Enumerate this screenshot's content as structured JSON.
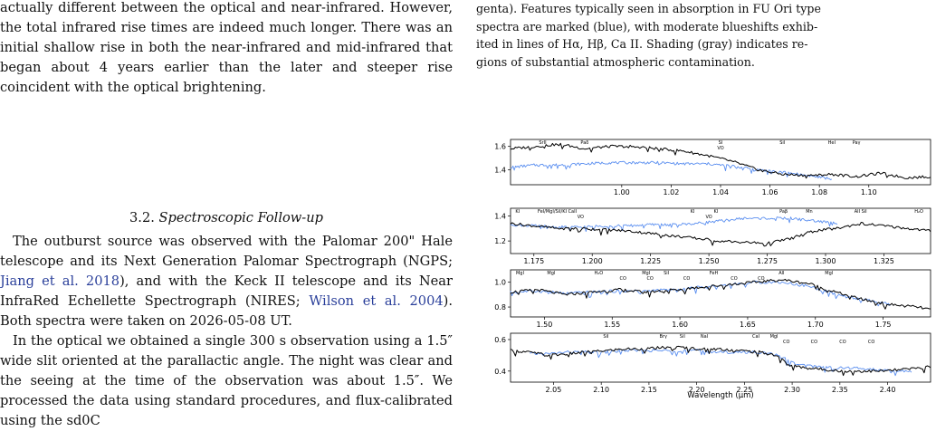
{
  "left_column": {
    "para1": "actually different between the optical and near-infrared. However, the total infrared rise times are indeed much longer.  There was an initial shallow rise in both the near-infrared and mid-infrared that began about 4 years earlier than the later and steeper rise coincident with the optical brightening.",
    "section_number": "3.2.",
    "section_title": "Spectroscopic Follow-up",
    "para2_a": "The outburst source was observed with the Palomar 200\" Hale telescope and its Next Generation Palomar Spectrograph (NGPS; ",
    "para2_cite1": "Jiang et al. 2018",
    "para2_b": "), and with the Keck II telescope and its Near InfraRed Echellette Spectrograph (NIRES; ",
    "para2_cite2": "Wilson et al. 2004",
    "para2_c": ").  Both spectra were taken on 2026-05-08 UT.",
    "para3": "In the optical we obtained a single 300 s observation using a 1.5″ wide slit oriented at the parallactic angle. The night was clear and the seeing at the time of the observation was about 1.5″. We processed the data using standard procedures, and flux-calibrated using the sd0C"
  },
  "right_column": {
    "caption_line1": "genta). Features typically seen in absorption in FU Ori type",
    "caption_line2": "spectra are marked (blue), with moderate blueshifts exhib-",
    "caption_line3": "ited in lines of Hα, Hβ, Ca II. Shading (gray) indicates re-",
    "caption_line4": "gions of substantial atmospheric contamination."
  },
  "chart_data": {
    "type": "line",
    "xlabel": "Wavelength (μm)",
    "colors": {
      "target": "#000000",
      "template": "#5b8ff0"
    },
    "panels": [
      {
        "xlim": [
          0.955,
          1.125
        ],
        "ylim": [
          1.27,
          1.66
        ],
        "xticks": [
          "1.00",
          "1.02",
          "1.04",
          "1.06",
          "1.08",
          "1.10"
        ],
        "xtick_values": [
          1.0,
          1.02,
          1.04,
          1.06,
          1.08,
          1.1
        ],
        "yticks": [
          "1.6",
          "1.4"
        ],
        "ytick_values": [
          1.6,
          1.4
        ],
        "line_labels": [
          {
            "x": 0.968,
            "text": "SrII"
          },
          {
            "x": 0.985,
            "text": "Paδ"
          },
          {
            "x": 1.04,
            "text": "SI"
          },
          {
            "x": 1.04,
            "text": "VO",
            "row": 2
          },
          {
            "x": 1.065,
            "text": "SiI"
          },
          {
            "x": 1.085,
            "text": "HeI"
          },
          {
            "x": 1.095,
            "text": "Paγ"
          }
        ],
        "target": [
          [
            0.955,
            1.58
          ],
          [
            0.965,
            1.6
          ],
          [
            0.975,
            1.62
          ],
          [
            0.985,
            1.58
          ],
          [
            0.995,
            1.6
          ],
          [
            1.005,
            1.6
          ],
          [
            1.015,
            1.58
          ],
          [
            1.025,
            1.56
          ],
          [
            1.035,
            1.52
          ],
          [
            1.045,
            1.47
          ],
          [
            1.055,
            1.4
          ],
          [
            1.065,
            1.36
          ],
          [
            1.075,
            1.35
          ],
          [
            1.085,
            1.36
          ],
          [
            1.095,
            1.34
          ],
          [
            1.105,
            1.37
          ],
          [
            1.115,
            1.33
          ],
          [
            1.125,
            1.34
          ]
        ],
        "template": [
          [
            0.955,
            1.42
          ],
          [
            0.965,
            1.44
          ],
          [
            0.975,
            1.44
          ],
          [
            0.985,
            1.45
          ],
          [
            0.995,
            1.46
          ],
          [
            1.005,
            1.46
          ],
          [
            1.015,
            1.46
          ],
          [
            1.025,
            1.45
          ],
          [
            1.035,
            1.45
          ],
          [
            1.045,
            1.43
          ],
          [
            1.055,
            1.4
          ],
          [
            1.065,
            1.38
          ],
          [
            1.075,
            1.35
          ],
          [
            1.085,
            1.32
          ]
        ]
      },
      {
        "xlim": [
          1.165,
          1.345
        ],
        "ylim": [
          1.1,
          1.46
        ],
        "xticks": [
          "1.175",
          "1.200",
          "1.225",
          "1.250",
          "1.275",
          "1.300",
          "1.325"
        ],
        "xtick_values": [
          1.175,
          1.2,
          1.225,
          1.25,
          1.275,
          1.3,
          1.325
        ],
        "yticks": [
          "1.4",
          "1.2"
        ],
        "ytick_values": [
          1.4,
          1.2
        ],
        "line_labels": [
          {
            "x": 1.168,
            "text": "KI"
          },
          {
            "x": 1.185,
            "text": "FeI/MgI/SiI/KI CaII"
          },
          {
            "x": 1.195,
            "text": "VO",
            "row": 2
          },
          {
            "x": 1.243,
            "text": "KI"
          },
          {
            "x": 1.253,
            "text": "KI"
          },
          {
            "x": 1.25,
            "text": "VO",
            "row": 2
          },
          {
            "x": 1.282,
            "text": "Paβ"
          },
          {
            "x": 1.293,
            "text": "Mn"
          },
          {
            "x": 1.315,
            "text": "AlI SiI"
          },
          {
            "x": 1.34,
            "text": "H₂O"
          }
        ],
        "target": [
          [
            1.165,
            1.34
          ],
          [
            1.175,
            1.32
          ],
          [
            1.185,
            1.3
          ],
          [
            1.195,
            1.3
          ],
          [
            1.205,
            1.29
          ],
          [
            1.215,
            1.28
          ],
          [
            1.225,
            1.26
          ],
          [
            1.235,
            1.24
          ],
          [
            1.245,
            1.22
          ],
          [
            1.255,
            1.2
          ],
          [
            1.265,
            1.19
          ],
          [
            1.275,
            1.18
          ],
          [
            1.285,
            1.22
          ],
          [
            1.295,
            1.28
          ],
          [
            1.305,
            1.3
          ],
          [
            1.315,
            1.34
          ],
          [
            1.325,
            1.32
          ],
          [
            1.335,
            1.3
          ],
          [
            1.345,
            1.28
          ]
        ],
        "template": [
          [
            1.165,
            1.33
          ],
          [
            1.175,
            1.32
          ],
          [
            1.185,
            1.31
          ],
          [
            1.195,
            1.31
          ],
          [
            1.205,
            1.32
          ],
          [
            1.215,
            1.32
          ],
          [
            1.225,
            1.33
          ],
          [
            1.235,
            1.33
          ],
          [
            1.245,
            1.34
          ],
          [
            1.255,
            1.36
          ],
          [
            1.265,
            1.38
          ],
          [
            1.275,
            1.38
          ],
          [
            1.285,
            1.38
          ],
          [
            1.295,
            1.36
          ],
          [
            1.305,
            1.34
          ]
        ]
      },
      {
        "xlim": [
          1.475,
          1.785
        ],
        "ylim": [
          0.72,
          1.1
        ],
        "xticks": [
          "1.50",
          "1.55",
          "1.60",
          "1.65",
          "1.70",
          "1.75"
        ],
        "xtick_values": [
          1.5,
          1.55,
          1.6,
          1.65,
          1.7,
          1.75
        ],
        "yticks": [
          "1.0",
          "0.8"
        ],
        "ytick_values": [
          1.0,
          0.8
        ],
        "line_labels": [
          {
            "x": 1.482,
            "text": "MgI"
          },
          {
            "x": 1.505,
            "text": "MgI"
          },
          {
            "x": 1.54,
            "text": "H₂O"
          },
          {
            "x": 1.575,
            "text": "MgI"
          },
          {
            "x": 1.59,
            "text": "SiI"
          },
          {
            "x": 1.578,
            "text": "CO",
            "row": 2
          },
          {
            "x": 1.558,
            "text": "CO",
            "row": 2
          },
          {
            "x": 1.605,
            "text": "CO",
            "row": 2
          },
          {
            "x": 1.625,
            "text": "FeH"
          },
          {
            "x": 1.64,
            "text": "CO",
            "row": 2
          },
          {
            "x": 1.66,
            "text": "CO",
            "row": 2
          },
          {
            "x": 1.675,
            "text": "AlI"
          },
          {
            "x": 1.71,
            "text": "MgI"
          }
        ],
        "target": [
          [
            1.475,
            0.92
          ],
          [
            1.495,
            0.94
          ],
          [
            1.515,
            0.9
          ],
          [
            1.535,
            0.92
          ],
          [
            1.555,
            0.94
          ],
          [
            1.575,
            0.92
          ],
          [
            1.595,
            0.94
          ],
          [
            1.615,
            0.96
          ],
          [
            1.635,
            0.98
          ],
          [
            1.655,
            1.0
          ],
          [
            1.675,
            1.02
          ],
          [
            1.695,
            0.99
          ],
          [
            1.715,
            0.92
          ],
          [
            1.735,
            0.86
          ],
          [
            1.755,
            0.82
          ],
          [
            1.775,
            0.8
          ],
          [
            1.785,
            0.78
          ]
        ],
        "template": [
          [
            1.475,
            0.92
          ],
          [
            1.495,
            0.93
          ],
          [
            1.515,
            0.91
          ],
          [
            1.535,
            0.92
          ],
          [
            1.555,
            0.93
          ],
          [
            1.575,
            0.93
          ],
          [
            1.595,
            0.94
          ],
          [
            1.615,
            0.96
          ],
          [
            1.635,
            0.98
          ],
          [
            1.655,
            1.0
          ],
          [
            1.675,
            1.0
          ],
          [
            1.695,
            0.97
          ],
          [
            1.715,
            0.9
          ],
          [
            1.735,
            0.86
          ],
          [
            1.755,
            0.82
          ]
        ]
      },
      {
        "xlim": [
          2.005,
          2.445
        ],
        "ylim": [
          0.33,
          0.64
        ],
        "xticks": [
          "2.05",
          "2.10",
          "2.15",
          "2.20",
          "2.25",
          "2.30",
          "2.35",
          "2.40"
        ],
        "xtick_values": [
          2.05,
          2.1,
          2.15,
          2.2,
          2.25,
          2.3,
          2.35,
          2.4
        ],
        "yticks": [
          "0.6",
          "0.4"
        ],
        "ytick_values": [
          0.6,
          0.4
        ],
        "line_labels": [
          {
            "x": 2.105,
            "text": "SiI"
          },
          {
            "x": 2.165,
            "text": "Brγ"
          },
          {
            "x": 2.185,
            "text": "SiI"
          },
          {
            "x": 2.208,
            "text": "NaI"
          },
          {
            "x": 2.262,
            "text": "CaI"
          },
          {
            "x": 2.281,
            "text": "MgI"
          },
          {
            "x": 2.294,
            "text": "CO",
            "row": 2
          },
          {
            "x": 2.323,
            "text": "CO",
            "row": 2
          },
          {
            "x": 2.353,
            "text": "CO",
            "row": 2
          },
          {
            "x": 2.383,
            "text": "CO",
            "row": 2
          }
        ],
        "target": [
          [
            2.005,
            0.53
          ],
          [
            2.025,
            0.52
          ],
          [
            2.045,
            0.5
          ],
          [
            2.065,
            0.51
          ],
          [
            2.085,
            0.52
          ],
          [
            2.105,
            0.53
          ],
          [
            2.125,
            0.54
          ],
          [
            2.145,
            0.54
          ],
          [
            2.165,
            0.55
          ],
          [
            2.185,
            0.55
          ],
          [
            2.205,
            0.54
          ],
          [
            2.225,
            0.54
          ],
          [
            2.245,
            0.53
          ],
          [
            2.265,
            0.52
          ],
          [
            2.285,
            0.5
          ],
          [
            2.295,
            0.44
          ],
          [
            2.315,
            0.42
          ],
          [
            2.335,
            0.41
          ],
          [
            2.355,
            0.4
          ],
          [
            2.375,
            0.4
          ],
          [
            2.395,
            0.4
          ],
          [
            2.415,
            0.41
          ],
          [
            2.435,
            0.42
          ],
          [
            2.445,
            0.43
          ]
        ],
        "template": [
          [
            2.025,
            0.51
          ],
          [
            2.045,
            0.51
          ],
          [
            2.065,
            0.52
          ],
          [
            2.085,
            0.52
          ],
          [
            2.105,
            0.52
          ],
          [
            2.125,
            0.53
          ],
          [
            2.145,
            0.53
          ],
          [
            2.165,
            0.53
          ],
          [
            2.185,
            0.53
          ],
          [
            2.205,
            0.53
          ],
          [
            2.225,
            0.52
          ],
          [
            2.245,
            0.52
          ],
          [
            2.265,
            0.52
          ],
          [
            2.285,
            0.5
          ],
          [
            2.305,
            0.44
          ],
          [
            2.325,
            0.43
          ],
          [
            2.345,
            0.42
          ],
          [
            2.365,
            0.42
          ],
          [
            2.385,
            0.41
          ],
          [
            2.405,
            0.4
          ],
          [
            2.425,
            0.4
          ]
        ]
      }
    ]
  }
}
